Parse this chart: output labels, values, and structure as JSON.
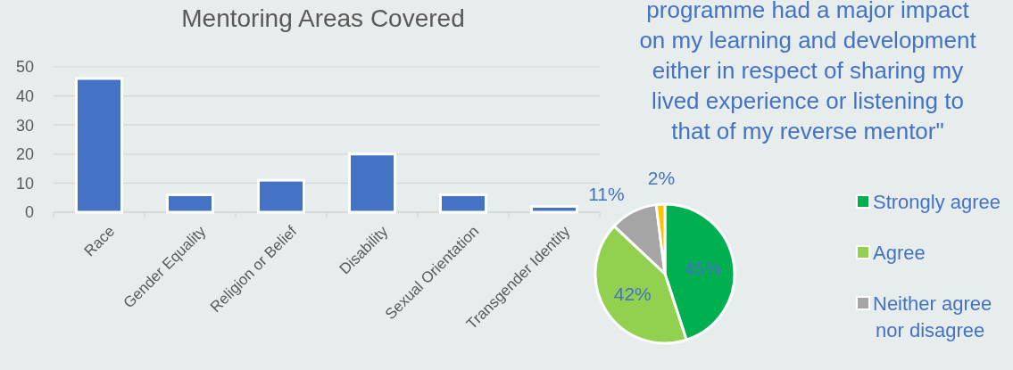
{
  "chart_data": [
    {
      "type": "bar",
      "title": "Mentoring Areas Covered",
      "categories": [
        "Race",
        "Gender Equality",
        "Religion or Belief",
        "Disability",
        "Sexual Orientation",
        "Transgender Identity"
      ],
      "values": [
        46,
        6,
        11,
        20,
        6,
        2
      ],
      "color": "#4472c4",
      "ylim": [
        0,
        50
      ],
      "yticks": [
        0,
        10,
        20,
        30,
        40,
        50
      ],
      "grid": "y"
    },
    {
      "type": "pie",
      "title": "programme had a major impact\non my learning and development\neither in respect of sharing my\nlived experience or listening to\nthat of my reverse mentor\"",
      "categories": [
        "Strongly agree",
        "Agree",
        "Neither agree\nnor disagree",
        null
      ],
      "values": [
        45,
        42,
        11,
        2
      ],
      "colors": [
        "#00b050",
        "#92d050",
        "#a5a5a5",
        "#ffc000"
      ],
      "value_labels": [
        "45%",
        "42%",
        "11%",
        "2%"
      ],
      "legend": "right"
    }
  ]
}
